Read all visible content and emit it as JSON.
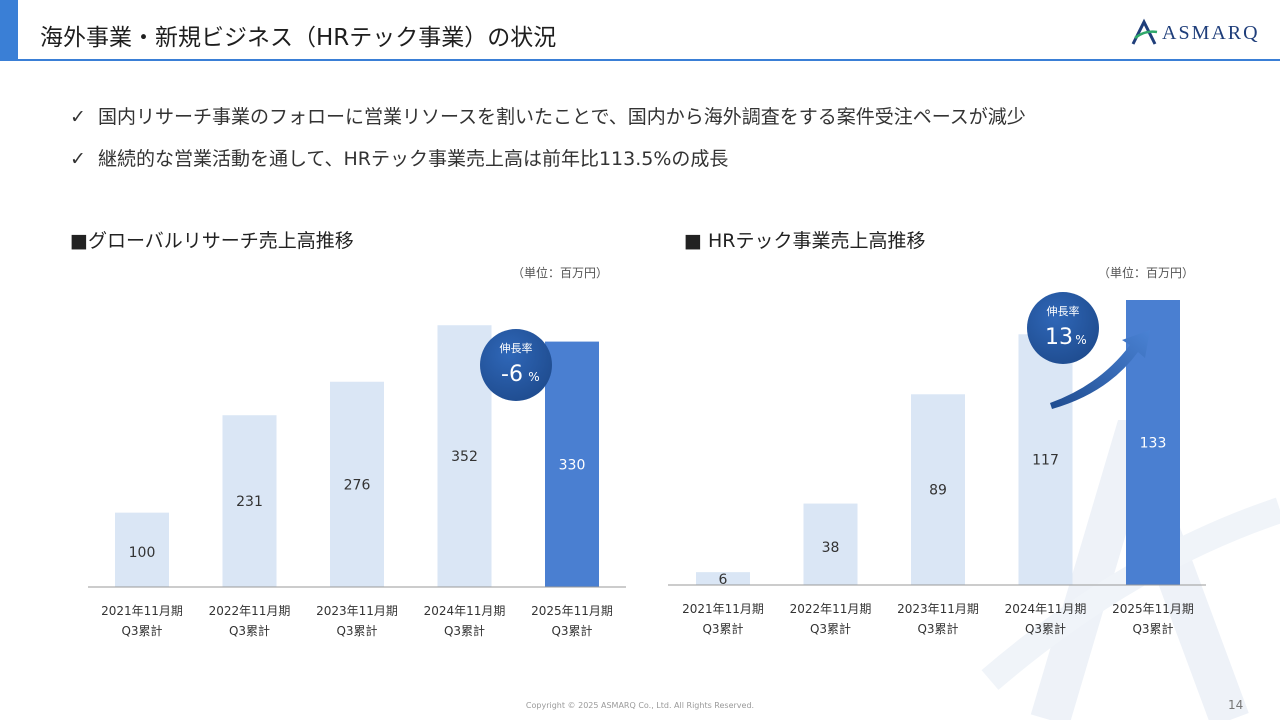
{
  "header": {
    "title": "海外事業・新規ビジネス（HRテック事業）の状況",
    "logo_text": "ASMARQ"
  },
  "bullets": [
    {
      "mark": "✓",
      "text": "国内リサーチ事業のフォローに営業リソースを割いたことで、国内から海外調査をする案件受注ペースが減少"
    },
    {
      "mark": "✓",
      "text": "継続的な営業活動を通して、HRテック事業売上高は前年比113.5%の成長"
    }
  ],
  "left_section": {
    "title": "■グローバルリサーチ売上高推移",
    "unit": "（単位：百万円）"
  },
  "right_section": {
    "title": "■ HRテック事業売上高推移",
    "unit": "（単位：百万円）"
  },
  "colors": {
    "accent": "#3a7fd6",
    "bar_light": "#dae6f5",
    "bar_dark": "#4a7fd1",
    "badge": "#1f4c8f"
  },
  "chart_data": [
    {
      "type": "bar",
      "categories": [
        "2021年11月期",
        "2022年11月期",
        "2023年11月期",
        "2024年11月期",
        "2025年11月期"
      ],
      "category_sublabel": "Q3累計",
      "values": [
        100,
        231,
        276,
        352,
        330
      ],
      "value_labels": [
        "100",
        "231",
        "276",
        "352",
        "330"
      ],
      "highlight_index": 4,
      "ylim": [
        0,
        355
      ],
      "callout": {
        "label": "伸長率",
        "value": "-6",
        "suffix": "%"
      }
    },
    {
      "type": "bar",
      "categories": [
        "2021年11月期",
        "2022年11月期",
        "2023年11月期",
        "2024年11月期",
        "2025年11月期"
      ],
      "category_sublabel": "Q3累計",
      "values": [
        6,
        38,
        89,
        117,
        133
      ],
      "value_labels": [
        "6",
        "38",
        "89",
        "117",
        "133"
      ],
      "highlight_index": 4,
      "ylim": [
        0,
        133
      ],
      "callout": {
        "label": "伸長率",
        "value": "13",
        "suffix": "%"
      }
    }
  ],
  "footer": {
    "copyright": "Copyright © 2025 ASMARQ Co., Ltd. All Rights Reserved.",
    "page": "14"
  }
}
